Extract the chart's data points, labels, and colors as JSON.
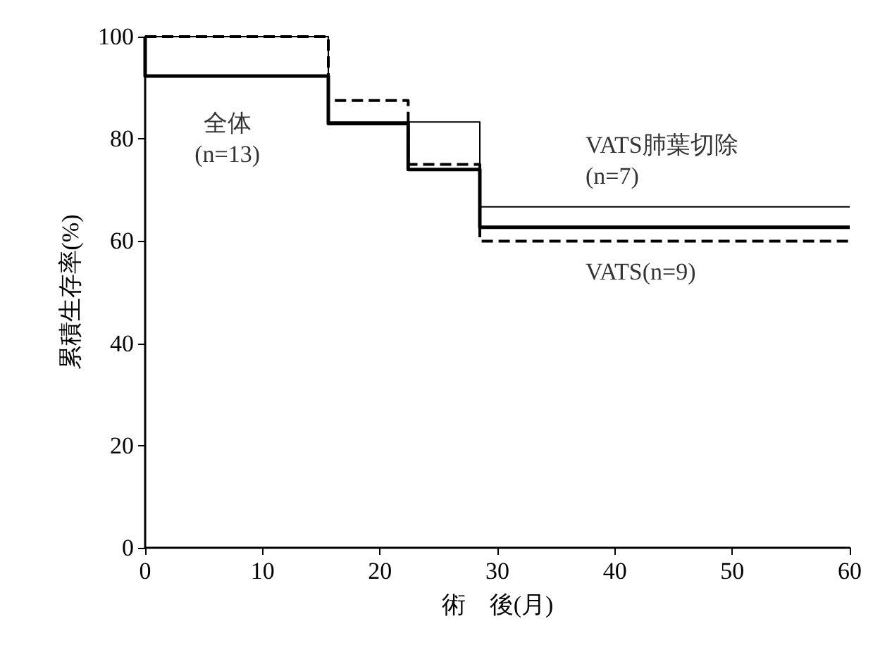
{
  "chart_data": {
    "type": "step",
    "xlabel": "術　後(月)",
    "ylabel": "累積生存率(%)",
    "xlim": [
      0,
      60
    ],
    "xticks": [
      0,
      10,
      20,
      30,
      40,
      50,
      60
    ],
    "ylim": [
      0,
      100
    ],
    "yticks": [
      0,
      20,
      40,
      60,
      80,
      100
    ],
    "grid": false,
    "legend": false,
    "marker": "none",
    "series": [
      {
        "name": "全体\n(n=13)",
        "color": "#000000",
        "line_style": "solid",
        "x": [
          0,
          0,
          15.6,
          22.4,
          28.5,
          60
        ],
        "values": [
          100,
          92.3,
          83,
          74,
          62.7,
          62.7
        ]
      },
      {
        "name": "VATS肺葉切除\n(n=7)",
        "color": "#000000",
        "line_style": "solid",
        "x": [
          0,
          15.6,
          28.5,
          60
        ],
        "values": [
          100,
          83.3,
          66.7,
          66.7
        ]
      },
      {
        "name": "VATS(n=9)",
        "color": "#000000",
        "line_style": "dashed",
        "x": [
          0,
          15.6,
          22.4,
          28.5,
          60
        ],
        "values": [
          100,
          87.5,
          75,
          60,
          60
        ]
      }
    ]
  }
}
